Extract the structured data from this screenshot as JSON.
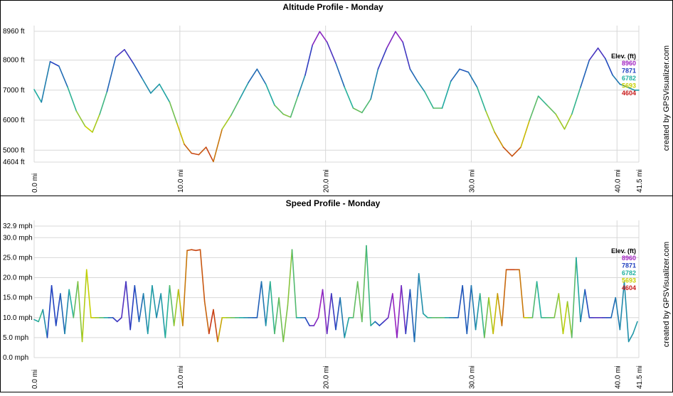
{
  "chart_data": [
    {
      "type": "line",
      "title": "Altitude Profile - Monday",
      "xlabel": "",
      "ylabel": "",
      "xlim": [
        0,
        41.5
      ],
      "ylim": [
        4604,
        8960
      ],
      "y_ticks": [
        {
          "value": 8960,
          "label": "8960 ft"
        },
        {
          "value": 8000,
          "label": "8000 ft"
        },
        {
          "value": 7000,
          "label": "7000 ft"
        },
        {
          "value": 6000,
          "label": "6000 ft"
        },
        {
          "value": 5000,
          "label": "5000 ft"
        },
        {
          "value": 4604,
          "label": "4604 ft"
        }
      ],
      "x_ticks": [
        {
          "value": 0,
          "label": "0.0 mi"
        },
        {
          "value": 10,
          "label": "10.0 mi"
        },
        {
          "value": 20,
          "label": "20.0 mi"
        },
        {
          "value": 30,
          "label": "30.0 mi"
        },
        {
          "value": 40,
          "label": "40.0 mi"
        },
        {
          "value": 41.5,
          "label": "41.5 mi"
        }
      ],
      "legend": {
        "title": "Elev. (ft)",
        "placement": "top-right",
        "entries": [
          {
            "label": "8960",
            "color": "#a020c0"
          },
          {
            "label": "7871",
            "color": "#2040c0"
          },
          {
            "label": "6782",
            "color": "#20b0a0"
          },
          {
            "label": "5693",
            "color": "#c8d000"
          },
          {
            "label": "4604",
            "color": "#c81818"
          }
        ]
      },
      "grid": true,
      "series": [
        {
          "x": [
            0.0,
            0.5,
            1.1,
            1.7,
            2.3,
            2.9,
            3.5,
            4.0,
            4.5,
            5.0,
            5.6,
            6.2,
            6.8,
            7.4,
            8.0,
            8.6,
            9.3,
            9.8,
            10.3,
            10.8,
            11.3,
            11.8,
            12.3,
            12.9,
            13.5,
            14.1,
            14.7,
            15.3,
            15.9,
            16.5,
            17.1,
            17.6,
            18.1,
            18.6,
            19.1,
            19.6,
            20.1,
            20.7,
            21.3,
            21.9,
            22.5,
            23.1,
            23.6,
            24.2,
            24.8,
            25.3,
            25.8,
            26.3,
            26.8,
            27.4,
            28.0,
            28.6,
            29.2,
            29.8,
            30.4,
            31.0,
            31.6,
            32.2,
            32.8,
            33.4,
            34.0,
            34.6,
            35.2,
            35.8,
            36.4,
            36.9,
            37.5,
            38.1,
            38.7,
            39.2,
            39.7,
            40.2,
            40.7,
            41.2,
            41.5
          ],
          "y": [
            7020,
            6600,
            7950,
            7800,
            7100,
            6300,
            5800,
            5600,
            6200,
            6950,
            8100,
            8350,
            7900,
            7400,
            6900,
            7200,
            6600,
            5900,
            5200,
            4900,
            4850,
            5100,
            4620,
            5700,
            6150,
            6700,
            7250,
            7700,
            7200,
            6500,
            6200,
            6100,
            6800,
            7500,
            8500,
            8950,
            8600,
            7900,
            7100,
            6400,
            6250,
            6700,
            7700,
            8400,
            8950,
            8600,
            7700,
            7300,
            6950,
            6400,
            6400,
            7300,
            7700,
            7600,
            7100,
            6300,
            5600,
            5100,
            4800,
            5100,
            6000,
            6800,
            6500,
            6200,
            5700,
            6200,
            7100,
            8000,
            8400,
            8050,
            7500,
            7200,
            7100,
            7000,
            7000
          ]
        }
      ]
    },
    {
      "type": "line",
      "title": "Speed Profile - Monday",
      "xlabel": "",
      "ylabel": "",
      "xlim": [
        0,
        41.5
      ],
      "ylim": [
        0,
        32.9
      ],
      "y_ticks": [
        {
          "value": 32.9,
          "label": "32.9 mph"
        },
        {
          "value": 30,
          "label": "30.0 mph"
        },
        {
          "value": 25,
          "label": "25.0 mph"
        },
        {
          "value": 20,
          "label": "20.0 mph"
        },
        {
          "value": 15,
          "label": "15.0 mph"
        },
        {
          "value": 10,
          "label": "10.0 mph"
        },
        {
          "value": 5,
          "label": "5.0 mph"
        },
        {
          "value": 0,
          "label": "0.0 mph"
        }
      ],
      "x_ticks": [
        {
          "value": 0,
          "label": "0.0 mi"
        },
        {
          "value": 10,
          "label": "10.0 mi"
        },
        {
          "value": 20,
          "label": "20.0 mi"
        },
        {
          "value": 30,
          "label": "30.0 mi"
        },
        {
          "value": 40,
          "label": "40.0 mi"
        },
        {
          "value": 41.5,
          "label": "41.5 mi"
        }
      ],
      "legend": {
        "title": "Elev. (ft)",
        "placement": "top-right",
        "entries": [
          {
            "label": "8960",
            "color": "#a020c0"
          },
          {
            "label": "7871",
            "color": "#2040c0"
          },
          {
            "label": "6782",
            "color": "#20b0a0"
          },
          {
            "label": "5693",
            "color": "#c8d000"
          },
          {
            "label": "4604",
            "color": "#c81818"
          }
        ]
      },
      "grid": true,
      "series": [
        {
          "x": [
            0.0,
            0.3,
            0.6,
            0.9,
            1.2,
            1.5,
            1.8,
            2.1,
            2.4,
            2.7,
            3.0,
            3.3,
            3.6,
            3.9,
            4.2,
            4.5,
            4.8,
            5.1,
            5.4,
            5.7,
            6.0,
            6.3,
            6.6,
            6.9,
            7.2,
            7.5,
            7.8,
            8.1,
            8.4,
            8.7,
            9.0,
            9.3,
            9.6,
            9.9,
            10.2,
            10.5,
            10.8,
            11.1,
            11.4,
            11.7,
            12.0,
            12.3,
            12.6,
            12.9,
            13.2,
            13.5,
            13.8,
            14.1,
            14.4,
            14.7,
            15.0,
            15.3,
            15.6,
            15.9,
            16.2,
            16.5,
            16.8,
            17.1,
            17.4,
            17.7,
            18.0,
            18.3,
            18.6,
            18.9,
            19.2,
            19.5,
            19.8,
            20.1,
            20.4,
            20.7,
            21.0,
            21.3,
            21.6,
            21.9,
            22.2,
            22.5,
            22.8,
            23.1,
            23.4,
            23.7,
            24.0,
            24.3,
            24.6,
            24.9,
            25.2,
            25.5,
            25.8,
            26.1,
            26.4,
            26.7,
            27.0,
            27.3,
            27.6,
            27.9,
            28.2,
            28.5,
            28.8,
            29.1,
            29.4,
            29.7,
            30.0,
            30.3,
            30.6,
            30.9,
            31.2,
            31.5,
            31.8,
            32.1,
            32.4,
            32.7,
            33.0,
            33.3,
            33.6,
            33.9,
            34.2,
            34.5,
            34.8,
            35.1,
            35.4,
            35.7,
            36.0,
            36.3,
            36.6,
            36.9,
            37.2,
            37.5,
            37.8,
            38.1,
            38.4,
            38.7,
            39.0,
            39.3,
            39.6,
            39.9,
            40.2,
            40.5,
            40.8,
            41.1,
            41.4
          ],
          "y": [
            9.5,
            9.0,
            12.0,
            5.0,
            18.0,
            8.0,
            16.0,
            6.0,
            17.0,
            10.0,
            19.0,
            4.0,
            22.0,
            10.0,
            10.0,
            10.0,
            10.0,
            10.0,
            10.0,
            9.0,
            10.0,
            19.0,
            7.0,
            18.0,
            9.0,
            16.0,
            6.0,
            18.0,
            10.0,
            16.0,
            5.0,
            18.0,
            8.0,
            17.0,
            8.0,
            26.8,
            27.0,
            26.8,
            27.0,
            14.0,
            6.0,
            12.0,
            4.0,
            10.0,
            10.0,
            10.0,
            10.0,
            10.0,
            10.0,
            10.0,
            10.0,
            10.0,
            19.0,
            8.0,
            19.0,
            6.0,
            15.0,
            4.0,
            13.0,
            27.0,
            10.0,
            10.0,
            10.0,
            8.0,
            8.0,
            10.0,
            17.0,
            6.0,
            16.0,
            7.0,
            15.0,
            5.0,
            10.0,
            10.0,
            19.0,
            9.0,
            28.0,
            8.0,
            9.0,
            8.0,
            9.0,
            10.0,
            16.0,
            5.0,
            18.0,
            6.0,
            17.0,
            4.0,
            21.0,
            11.0,
            10.0,
            10.0,
            10.0,
            10.0,
            10.0,
            10.0,
            10.0,
            10.0,
            18.0,
            6.0,
            18.0,
            7.0,
            16.0,
            5.0,
            15.0,
            6.0,
            16.0,
            8.0,
            22.0,
            22.0,
            22.0,
            22.0,
            10.0,
            10.0,
            10.0,
            19.0,
            10.0,
            10.0,
            10.0,
            10.0,
            16.0,
            6.0,
            14.0,
            5.0,
            25.0,
            9.0,
            17.0,
            10.0,
            10.0,
            10.0,
            10.0,
            10.0,
            10.0,
            15.0,
            7.0,
            19.0,
            4.0,
            6.0,
            9.0
          ]
        }
      ]
    }
  ],
  "credit": "created by GPSVisualizer.com"
}
